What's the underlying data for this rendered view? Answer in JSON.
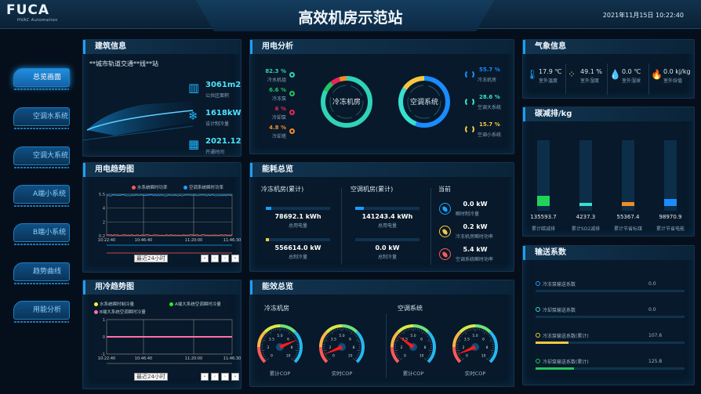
{
  "header": {
    "logo": "FUCA",
    "logo_sub": "HVAC Automation",
    "title": "高效机房示范站",
    "datetime": "2021年11月15日 10:22:40"
  },
  "nav": [
    {
      "label": "总览画面",
      "active": true
    },
    {
      "label": "空调水系统"
    },
    {
      "label": "空调大系统"
    },
    {
      "label": "A端小系统"
    },
    {
      "label": "B端小系统"
    },
    {
      "label": "趋势曲线"
    },
    {
      "label": "用能分析"
    }
  ],
  "building": {
    "title": "建筑信息",
    "name": "**城市轨道交通**线**站",
    "stats": [
      {
        "icon": "building-icon",
        "value": "3061m2",
        "label": "公共区面积"
      },
      {
        "icon": "snowflake-icon",
        "value": "1618kW",
        "label": "设计制冷量"
      },
      {
        "icon": "calendar-icon",
        "value": "2021.12",
        "label": "开通时间"
      }
    ]
  },
  "power_analysis": {
    "title": "用电分析",
    "left": {
      "center": "冷冻机房",
      "items": [
        {
          "value": "82.3 %",
          "pct": 82.3,
          "label": "冷水机组",
          "color": "#2fd3b8"
        },
        {
          "value": "6.6 %",
          "pct": 6.6,
          "label": "冷冻泵",
          "color": "#22c55e"
        },
        {
          "value": "6 %",
          "pct": 6,
          "label": "冷却泵",
          "color": "#e8245a"
        },
        {
          "value": "4.8 %",
          "pct": 4.8,
          "label": "冷却塔",
          "color": "#f28c28"
        }
      ]
    },
    "right": {
      "center": "空调系统",
      "items": [
        {
          "value": "55.7 %",
          "pct": 55.7,
          "label": "冷冻机房",
          "color": "#1a8cff"
        },
        {
          "value": "28.6 %",
          "pct": 28.6,
          "label": "空调大系统",
          "color": "#38e0d0"
        },
        {
          "value": "15.7 %",
          "pct": 15.7,
          "label": "空调小系统",
          "color": "#f5c842"
        }
      ]
    }
  },
  "weather": {
    "title": "气象信息",
    "items": [
      {
        "icon": "thermometer-icon",
        "value": "17.9 ℃",
        "label": "室外温度"
      },
      {
        "icon": "humidity-icon",
        "value": "49.1 %",
        "label": "室外湿度"
      },
      {
        "icon": "water-drop-icon",
        "value": "0.0 ℃",
        "label": "室外湿球"
      },
      {
        "icon": "flame-icon",
        "value": "0.0 kj/kg",
        "label": "室外焓值"
      }
    ]
  },
  "carbon": {
    "title": "碳减排/kg",
    "items": [
      {
        "value": "135593.7",
        "label": "累计碳减排",
        "color": "#22d35a",
        "fill": 0.14
      },
      {
        "value": "4237.3",
        "label": "累计SO2减排",
        "color": "#38e0d0",
        "fill": 0.04
      },
      {
        "value": "55367.4",
        "label": "累计节省标煤",
        "color": "#f28c28",
        "fill": 0.06
      },
      {
        "value": "98970.9",
        "label": "累计节省电能",
        "color": "#1a8cff",
        "fill": 0.1
      }
    ]
  },
  "power_trend": {
    "title": "用电趋势图",
    "legend": [
      {
        "name": "水系统瞬时功率",
        "color": "#ff5a5a"
      },
      {
        "name": "空调系统瞬时功率",
        "color": "#1aa3ff"
      }
    ],
    "y_ticks": [
      "5.5",
      "4",
      "2",
      "0.2"
    ],
    "x_ticks": [
      "10:22:40",
      "10:46:40",
      "11:20:00",
      "11:46:30"
    ],
    "select": "最近24小时"
  },
  "cold_trend": {
    "title": "用冷趋势图",
    "legend": [
      {
        "name": "水系统瞬时制冷量",
        "color": "#ffee33"
      },
      {
        "name": "A端大系统空调瞬时冷量",
        "color": "#22ee22"
      },
      {
        "name": "B端大系统空调瞬时冷量",
        "color": "#ff6fa8"
      }
    ],
    "y_ticks": [
      "1",
      "0",
      "-1"
    ],
    "x_ticks": [
      "10:22:40",
      "10:46:40",
      "11:20:00",
      "11:46:30"
    ],
    "select": "最近24小时"
  },
  "pager": [
    "«",
    "‹",
    "›",
    "»"
  ],
  "energy": {
    "title": "能耗总览",
    "cols": [
      {
        "title": "冷冻机房(累计)",
        "rows": [
          {
            "value": "78692.1 kWh",
            "label": "总用电量",
            "fill": 0.08,
            "color": "#1a9cff"
          },
          {
            "value": "556614.0 kW",
            "label": "总制冷量",
            "fill": 0.05,
            "color": "#f5c842"
          }
        ]
      },
      {
        "title": "空调机房(累计)",
        "rows": [
          {
            "value": "141243.4 kWh",
            "label": "总用电量",
            "fill": 0.14,
            "color": "#1a9cff"
          },
          {
            "value": "0.0 kW",
            "label": "总制冷量",
            "fill": 0,
            "color": "#f5c842"
          }
        ]
      }
    ],
    "current": {
      "title": "当前",
      "items": [
        {
          "value": "0.0 kW",
          "label": "瞬时制冷量",
          "color": "#1aa3ff"
        },
        {
          "value": "0.2 kW",
          "label": "冷冻机房瞬时功率",
          "color": "#f5c842"
        },
        {
          "value": "5.4 kW",
          "label": "空调系统瞬时功率",
          "color": "#ff5a5a"
        }
      ]
    }
  },
  "efficiency": {
    "title": "能效总览",
    "groups": [
      {
        "title": "冷冻机房",
        "gauges": [
          {
            "label": "累计COP",
            "value": 7
          },
          {
            "label": "实时COP",
            "value": 1
          }
        ]
      },
      {
        "title": "空调系统",
        "gauges": [
          {
            "label": "累计COP",
            "value": 3.2
          },
          {
            "label": "实时COP",
            "value": 1
          }
        ]
      }
    ],
    "ticks": [
      "0",
      "2",
      "3.5",
      "5.0",
      "6",
      "8",
      "10"
    ]
  },
  "transport": {
    "title": "输送系数",
    "items": [
      {
        "label": "冷冻泵输送系数",
        "value": "0.0",
        "color": "#1a9cff",
        "fill": 0
      },
      {
        "label": "冷却泵输送系数",
        "value": "0.0",
        "color": "#38e0d0",
        "fill": 0
      },
      {
        "label": "冷冻泵输送系数(累计)",
        "value": "107.6",
        "color": "#f5c842",
        "fill": 0.22
      },
      {
        "label": "冷却泵输送系数(累计)",
        "value": "125.8",
        "color": "#22c55e",
        "fill": 0.26
      }
    ]
  }
}
